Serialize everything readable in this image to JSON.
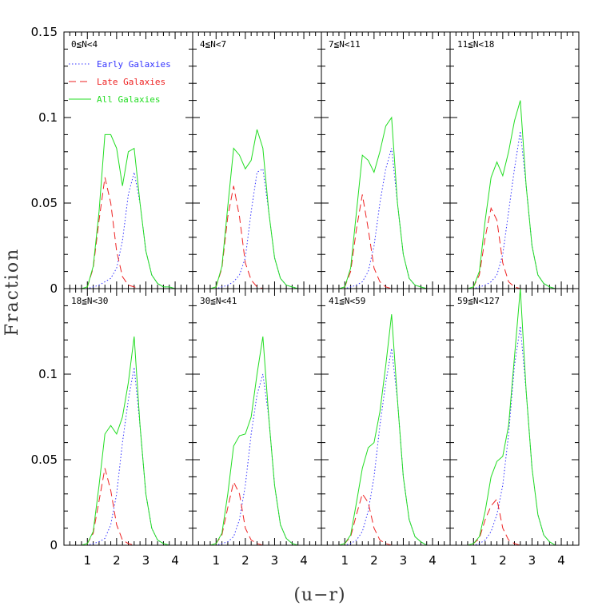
{
  "chart_data": {
    "type": "line",
    "title": "",
    "xlabel": "(u−r)",
    "ylabel": "Fraction",
    "xlim": [
      0.2,
      4.6
    ],
    "ylim": [
      0,
      0.15
    ],
    "grid": false,
    "layout": "2 rows x 4 columns, shared axes",
    "xticks": [
      "1",
      "2",
      "3",
      "4"
    ],
    "yticks": [
      "0",
      "0.05",
      "0.1",
      "0.15"
    ],
    "legend": {
      "location": "inside first panel, upper-left",
      "entries": [
        {
          "name": "Early Galaxies",
          "color": "#3333ff",
          "style": "dotted"
        },
        {
          "name": "Late Galaxies",
          "color": "#ee2222",
          "style": "dashed"
        },
        {
          "name": "All Galaxies",
          "color": "#22dd22",
          "style": "solid"
        }
      ]
    },
    "x": [
      0.2,
      0.4,
      0.6,
      0.8,
      1.0,
      1.2,
      1.4,
      1.6,
      1.8,
      2.0,
      2.2,
      2.4,
      2.6,
      2.8,
      3.0,
      3.2,
      3.4,
      3.6,
      3.8,
      4.0,
      4.2,
      4.4,
      4.6
    ],
    "panels": [
      {
        "label": "0≦N<4",
        "series": [
          {
            "name": "Early Galaxies",
            "values": [
              0,
              0,
              0,
              0,
              0,
              0.001,
              0.002,
              0.004,
              0.006,
              0.012,
              0.028,
              0.055,
              0.068,
              0.05,
              0.022,
              0.008,
              0.003,
              0.001,
              0.001,
              0,
              0,
              0,
              0
            ]
          },
          {
            "name": "Late Galaxies",
            "values": [
              0,
              0,
              0,
              0,
              0.001,
              0.012,
              0.04,
              0.065,
              0.05,
              0.022,
              0.007,
              0.002,
              0.001,
              0,
              0,
              0,
              0,
              0,
              0,
              0,
              0,
              0,
              0
            ]
          },
          {
            "name": "All Galaxies",
            "values": [
              0,
              0,
              0,
              0,
              0.001,
              0.013,
              0.045,
              0.09,
              0.09,
              0.082,
              0.06,
              0.08,
              0.082,
              0.05,
              0.022,
              0.008,
              0.003,
              0.001,
              0.001,
              0,
              0,
              0,
              0
            ]
          }
        ]
      },
      {
        "label": "4≦N<7",
        "series": [
          {
            "name": "Early Galaxies",
            "values": [
              0,
              0,
              0,
              0,
              0,
              0.001,
              0.002,
              0.004,
              0.008,
              0.018,
              0.045,
              0.068,
              0.07,
              0.045,
              0.018,
              0.006,
              0.002,
              0.001,
              0,
              0,
              0,
              0,
              0
            ]
          },
          {
            "name": "Late Galaxies",
            "values": [
              0,
              0,
              0,
              0,
              0.001,
              0.012,
              0.042,
              0.06,
              0.042,
              0.015,
              0.005,
              0.001,
              0,
              0,
              0,
              0,
              0,
              0,
              0,
              0,
              0,
              0,
              0
            ]
          },
          {
            "name": "All Galaxies",
            "values": [
              0,
              0,
              0,
              0,
              0.001,
              0.013,
              0.048,
              0.082,
              0.078,
              0.07,
              0.075,
              0.093,
              0.082,
              0.045,
              0.018,
              0.006,
              0.002,
              0.001,
              0,
              0,
              0,
              0,
              0
            ]
          }
        ]
      },
      {
        "label": "7≦N<11",
        "series": [
          {
            "name": "Early Galaxies",
            "values": [
              0,
              0,
              0,
              0,
              0,
              0.001,
              0.002,
              0.004,
              0.01,
              0.025,
              0.05,
              0.07,
              0.082,
              0.05,
              0.02,
              0.006,
              0.002,
              0.001,
              0,
              0,
              0,
              0,
              0
            ]
          },
          {
            "name": "Late Galaxies",
            "values": [
              0,
              0,
              0,
              0,
              0.001,
              0.01,
              0.035,
              0.055,
              0.035,
              0.012,
              0.004,
              0.001,
              0,
              0,
              0,
              0,
              0,
              0,
              0,
              0,
              0,
              0,
              0
            ]
          },
          {
            "name": "All Galaxies",
            "values": [
              0,
              0,
              0,
              0,
              0.001,
              0.012,
              0.045,
              0.078,
              0.075,
              0.068,
              0.08,
              0.095,
              0.1,
              0.05,
              0.02,
              0.006,
              0.002,
              0.001,
              0,
              0,
              0,
              0,
              0
            ]
          }
        ]
      },
      {
        "label": "11≦N<18",
        "series": [
          {
            "name": "Early Galaxies",
            "values": [
              0,
              0,
              0,
              0,
              0,
              0.001,
              0.002,
              0.004,
              0.008,
              0.02,
              0.045,
              0.07,
              0.092,
              0.06,
              0.025,
              0.008,
              0.003,
              0.001,
              0,
              0,
              0,
              0,
              0
            ]
          },
          {
            "name": "Late Galaxies",
            "values": [
              0,
              0,
              0,
              0,
              0.001,
              0.008,
              0.03,
              0.047,
              0.04,
              0.015,
              0.004,
              0.001,
              0,
              0,
              0,
              0,
              0,
              0,
              0,
              0,
              0,
              0,
              0
            ]
          },
          {
            "name": "All Galaxies",
            "values": [
              0,
              0,
              0,
              0,
              0.001,
              0.01,
              0.04,
              0.065,
              0.074,
              0.066,
              0.08,
              0.098,
              0.11,
              0.06,
              0.025,
              0.008,
              0.003,
              0.001,
              0,
              0,
              0,
              0,
              0
            ]
          }
        ]
      },
      {
        "label": "18≦N<30",
        "series": [
          {
            "name": "Early Galaxies",
            "values": [
              0,
              0,
              0,
              0,
              0,
              0.001,
              0.002,
              0.004,
              0.012,
              0.03,
              0.06,
              0.085,
              0.104,
              0.07,
              0.03,
              0.01,
              0.003,
              0.001,
              0,
              0,
              0,
              0,
              0
            ]
          },
          {
            "name": "Late Galaxies",
            "values": [
              0,
              0,
              0,
              0,
              0.001,
              0.007,
              0.026,
              0.045,
              0.032,
              0.012,
              0.003,
              0.001,
              0,
              0,
              0,
              0,
              0,
              0,
              0,
              0,
              0,
              0,
              0
            ]
          },
          {
            "name": "All Galaxies",
            "values": [
              0,
              0,
              0,
              0,
              0.001,
              0.008,
              0.035,
              0.065,
              0.07,
              0.065,
              0.075,
              0.095,
              0.122,
              0.07,
              0.03,
              0.01,
              0.003,
              0.001,
              0,
              0,
              0,
              0,
              0
            ]
          }
        ]
      },
      {
        "label": "30≦N<41",
        "series": [
          {
            "name": "Early Galaxies",
            "values": [
              0,
              0,
              0,
              0,
              0,
              0.001,
              0.002,
              0.005,
              0.015,
              0.035,
              0.065,
              0.088,
              0.1,
              0.075,
              0.035,
              0.012,
              0.004,
              0.001,
              0,
              0,
              0,
              0,
              0
            ]
          },
          {
            "name": "Late Galaxies",
            "values": [
              0,
              0,
              0,
              0,
              0.001,
              0.006,
              0.022,
              0.037,
              0.03,
              0.01,
              0.003,
              0.001,
              0,
              0,
              0,
              0,
              0,
              0,
              0,
              0,
              0,
              0,
              0
            ]
          },
          {
            "name": "All Galaxies",
            "values": [
              0,
              0,
              0,
              0,
              0.001,
              0.007,
              0.03,
              0.058,
              0.064,
              0.065,
              0.075,
              0.1,
              0.122,
              0.075,
              0.035,
              0.012,
              0.004,
              0.001,
              0,
              0,
              0,
              0,
              0
            ]
          }
        ]
      },
      {
        "label": "41≦N<59",
        "series": [
          {
            "name": "Early Galaxies",
            "values": [
              0,
              0,
              0,
              0,
              0,
              0.001,
              0.003,
              0.008,
              0.02,
              0.04,
              0.07,
              0.095,
              0.115,
              0.085,
              0.04,
              0.015,
              0.005,
              0.002,
              0,
              0,
              0,
              0,
              0
            ]
          },
          {
            "name": "Late Galaxies",
            "values": [
              0,
              0,
              0,
              0,
              0.001,
              0.005,
              0.018,
              0.03,
              0.025,
              0.01,
              0.003,
              0.001,
              0,
              0,
              0,
              0,
              0,
              0,
              0,
              0,
              0,
              0,
              0
            ]
          },
          {
            "name": "All Galaxies",
            "values": [
              0,
              0,
              0,
              0,
              0.001,
              0.006,
              0.025,
              0.045,
              0.057,
              0.06,
              0.078,
              0.105,
              0.135,
              0.085,
              0.04,
              0.015,
              0.005,
              0.002,
              0,
              0,
              0,
              0,
              0
            ]
          }
        ]
      },
      {
        "label": "59≦N<127",
        "series": [
          {
            "name": "Early Galaxies",
            "values": [
              0,
              0,
              0,
              0,
              0,
              0.001,
              0.003,
              0.008,
              0.018,
              0.035,
              0.065,
              0.105,
              0.128,
              0.09,
              0.045,
              0.018,
              0.006,
              0.002,
              0,
              0,
              0,
              0,
              0
            ]
          },
          {
            "name": "Late Galaxies",
            "values": [
              0,
              0,
              0,
              0,
              0.001,
              0.004,
              0.015,
              0.023,
              0.027,
              0.01,
              0.003,
              0.001,
              0,
              0,
              0,
              0,
              0,
              0,
              0,
              0,
              0,
              0,
              0
            ]
          },
          {
            "name": "All Galaxies",
            "values": [
              0,
              0,
              0,
              0,
              0.001,
              0.005,
              0.02,
              0.04,
              0.049,
              0.052,
              0.07,
              0.11,
              0.15,
              0.09,
              0.045,
              0.018,
              0.006,
              0.002,
              0,
              0,
              0,
              0,
              0
            ]
          }
        ]
      }
    ]
  }
}
